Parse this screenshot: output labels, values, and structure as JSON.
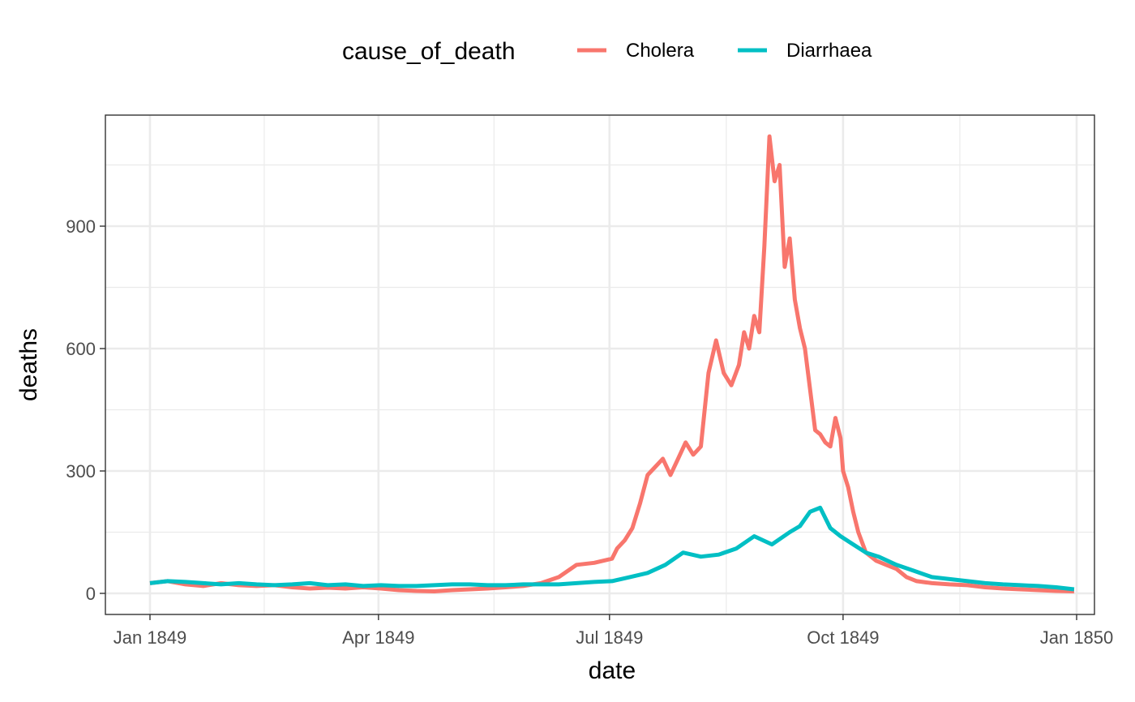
{
  "chart_data": {
    "type": "line",
    "xlabel": "date",
    "ylabel": "deaths",
    "legend": {
      "title": "cause_of_death",
      "position": "top"
    },
    "grid": true,
    "xlim": [
      "1849-01-01",
      "1850-01-01"
    ],
    "ylim": [
      -38,
      1145
    ],
    "x_ticks": [
      {
        "value": "1849-01-01",
        "label": "Jan 1849"
      },
      {
        "value": "1849-04-01",
        "label": "Apr 1849"
      },
      {
        "value": "1849-07-01",
        "label": "Jul 1849"
      },
      {
        "value": "1849-10-01",
        "label": "Oct 1849"
      },
      {
        "value": "1850-01-01",
        "label": "Jan 1850"
      }
    ],
    "y_ticks": [
      {
        "value": 0,
        "label": "0"
      },
      {
        "value": 300,
        "label": "300"
      },
      {
        "value": 600,
        "label": "600"
      },
      {
        "value": 900,
        "label": "900"
      }
    ],
    "series": [
      {
        "name": "Cholera",
        "color": "#F8766D",
        "x": [
          "1849-01-01",
          "1849-01-08",
          "1849-01-15",
          "1849-01-22",
          "1849-01-29",
          "1849-02-05",
          "1849-02-12",
          "1849-02-19",
          "1849-02-26",
          "1849-03-05",
          "1849-03-12",
          "1849-03-19",
          "1849-03-26",
          "1849-04-02",
          "1849-04-09",
          "1849-04-16",
          "1849-04-23",
          "1849-04-30",
          "1849-05-07",
          "1849-05-14",
          "1849-05-21",
          "1849-05-28",
          "1849-06-04",
          "1849-06-11",
          "1849-06-18",
          "1849-06-25",
          "1849-07-02",
          "1849-07-04",
          "1849-07-07",
          "1849-07-10",
          "1849-07-13",
          "1849-07-16",
          "1849-07-19",
          "1849-07-22",
          "1849-07-25",
          "1849-07-28",
          "1849-07-31",
          "1849-08-03",
          "1849-08-06",
          "1849-08-09",
          "1849-08-12",
          "1849-08-15",
          "1849-08-18",
          "1849-08-21",
          "1849-08-23",
          "1849-08-25",
          "1849-08-27",
          "1849-08-29",
          "1849-08-31",
          "1849-09-02",
          "1849-09-04",
          "1849-09-06",
          "1849-09-08",
          "1849-09-10",
          "1849-09-12",
          "1849-09-14",
          "1849-09-16",
          "1849-09-18",
          "1849-09-20",
          "1849-09-22",
          "1849-09-24",
          "1849-09-26",
          "1849-09-28",
          "1849-09-30",
          "1849-10-01",
          "1849-10-03",
          "1849-10-05",
          "1849-10-07",
          "1849-10-10",
          "1849-10-14",
          "1849-10-18",
          "1849-10-22",
          "1849-10-26",
          "1849-10-30",
          "1849-11-05",
          "1849-11-12",
          "1849-11-19",
          "1849-11-26",
          "1849-12-03",
          "1849-12-10",
          "1849-12-17",
          "1849-12-24",
          "1849-12-31"
        ],
        "values": [
          25,
          30,
          22,
          18,
          25,
          20,
          18,
          20,
          15,
          12,
          14,
          12,
          15,
          12,
          8,
          6,
          5,
          8,
          10,
          12,
          15,
          18,
          25,
          40,
          70,
          75,
          85,
          110,
          130,
          160,
          220,
          290,
          310,
          330,
          290,
          330,
          370,
          340,
          360,
          540,
          620,
          540,
          510,
          560,
          640,
          600,
          680,
          640,
          850,
          1120,
          1010,
          1050,
          800,
          870,
          720,
          650,
          600,
          500,
          400,
          390,
          370,
          360,
          430,
          380,
          300,
          260,
          200,
          150,
          100,
          80,
          70,
          60,
          40,
          30,
          25,
          22,
          20,
          15,
          12,
          10,
          8,
          6,
          5
        ]
      },
      {
        "name": "Diarrhaea",
        "color": "#00BFC4",
        "x": [
          "1849-01-01",
          "1849-01-08",
          "1849-01-15",
          "1849-01-22",
          "1849-01-29",
          "1849-02-05",
          "1849-02-12",
          "1849-02-19",
          "1849-02-26",
          "1849-03-05",
          "1849-03-12",
          "1849-03-19",
          "1849-03-26",
          "1849-04-02",
          "1849-04-09",
          "1849-04-16",
          "1849-04-23",
          "1849-04-30",
          "1849-05-07",
          "1849-05-14",
          "1849-05-21",
          "1849-05-28",
          "1849-06-04",
          "1849-06-11",
          "1849-06-18",
          "1849-06-25",
          "1849-07-02",
          "1849-07-09",
          "1849-07-16",
          "1849-07-23",
          "1849-07-30",
          "1849-08-06",
          "1849-08-13",
          "1849-08-20",
          "1849-08-27",
          "1849-09-03",
          "1849-09-10",
          "1849-09-14",
          "1849-09-18",
          "1849-09-22",
          "1849-09-26",
          "1849-09-30",
          "1849-10-05",
          "1849-10-10",
          "1849-10-15",
          "1849-10-22",
          "1849-10-29",
          "1849-11-05",
          "1849-11-12",
          "1849-11-19",
          "1849-11-26",
          "1849-12-03",
          "1849-12-10",
          "1849-12-17",
          "1849-12-24",
          "1849-12-31"
        ],
        "values": [
          25,
          30,
          28,
          25,
          22,
          25,
          22,
          20,
          22,
          25,
          20,
          22,
          18,
          20,
          18,
          18,
          20,
          22,
          22,
          20,
          20,
          22,
          22,
          22,
          25,
          28,
          30,
          40,
          50,
          70,
          100,
          90,
          95,
          110,
          140,
          120,
          150,
          165,
          200,
          210,
          160,
          140,
          120,
          100,
          90,
          70,
          55,
          40,
          35,
          30,
          25,
          22,
          20,
          18,
          15,
          10
        ]
      }
    ]
  }
}
